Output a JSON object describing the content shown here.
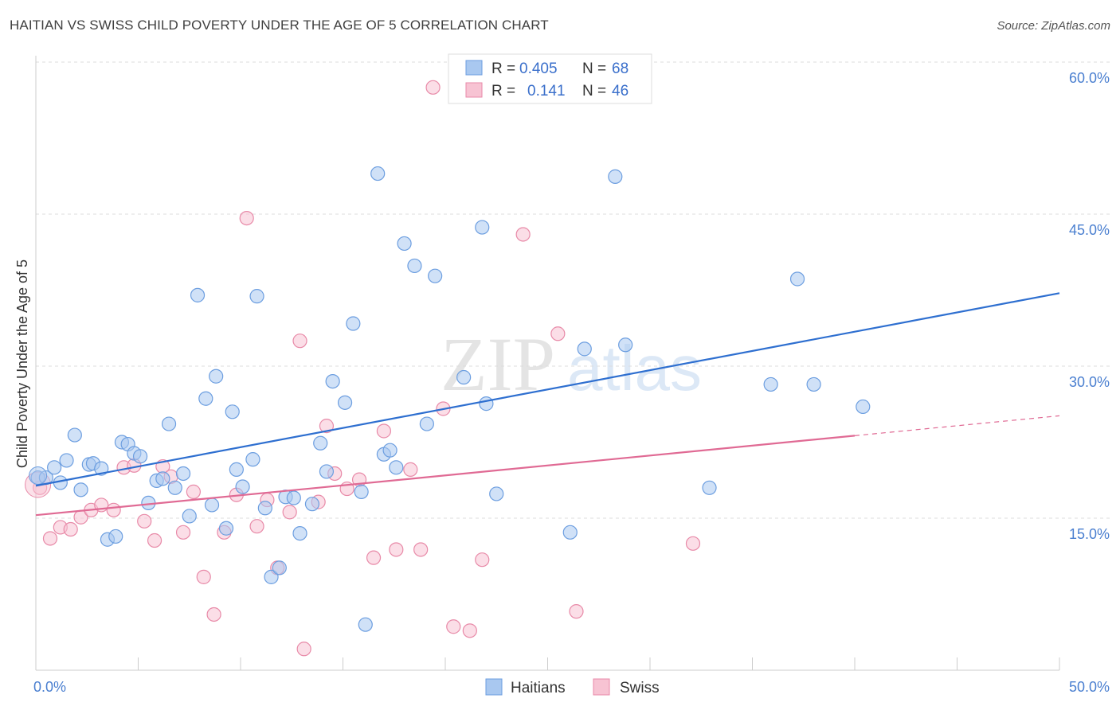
{
  "title": "HAITIAN VS SWISS CHILD POVERTY UNDER THE AGE OF 5 CORRELATION CHART",
  "source": "Source: ZipAtlas.com",
  "watermark": {
    "zip": "ZIP",
    "atlas": "atlas"
  },
  "colors": {
    "haitians_fill": "#a9c8f0",
    "haitians_stroke": "#6c9ee0",
    "haitians_line": "#2e6fd0",
    "swiss_fill": "#f7c3d3",
    "swiss_stroke": "#e88aa8",
    "swiss_line": "#e06a94",
    "tick_text": "#4a7fd0",
    "grid": "#dddddd"
  },
  "legend": {
    "rows": [
      {
        "r_label": "R =",
        "r_value": "0.405",
        "n_label": "N =",
        "n_value": "68"
      },
      {
        "r_label": "R =",
        "r_value": "0.141",
        "n_label": "N =",
        "n_value": "46"
      }
    ]
  },
  "bottom_legend": [
    "Haitians",
    "Swiss"
  ],
  "chart_data": {
    "type": "scatter",
    "title": "HAITIAN VS SWISS CHILD POVERTY UNDER THE AGE OF 5 CORRELATION CHART",
    "xlabel": "",
    "ylabel": "Child Poverty Under the Age of 5",
    "xlim": [
      0,
      50
    ],
    "ylim": [
      0,
      60
    ],
    "x_tick_labels": [
      "0.0%",
      "50.0%"
    ],
    "y_ticks": [
      15,
      30,
      45,
      60
    ],
    "y_tick_labels": [
      "15.0%",
      "30.0%",
      "45.0%",
      "60.0%"
    ],
    "grid": true,
    "series": [
      {
        "name": "Haitians",
        "R": 0.405,
        "N": 68,
        "trend": {
          "x": [
            0,
            50
          ],
          "y": [
            18.2,
            37.2
          ],
          "dashed_from": null
        },
        "points": [
          [
            0.1,
            19.0
          ],
          [
            0.5,
            19.0
          ],
          [
            0.9,
            20.0
          ],
          [
            1.2,
            18.5
          ],
          [
            1.5,
            20.7
          ],
          [
            1.9,
            23.2
          ],
          [
            2.2,
            17.8
          ],
          [
            2.6,
            20.3
          ],
          [
            2.8,
            20.4
          ],
          [
            3.2,
            19.9
          ],
          [
            3.5,
            12.9
          ],
          [
            3.9,
            13.2
          ],
          [
            4.2,
            22.5
          ],
          [
            4.5,
            22.3
          ],
          [
            4.8,
            21.4
          ],
          [
            5.1,
            21.1
          ],
          [
            5.5,
            16.5
          ],
          [
            5.9,
            18.7
          ],
          [
            6.2,
            18.9
          ],
          [
            6.5,
            24.3
          ],
          [
            6.8,
            18.0
          ],
          [
            7.2,
            19.4
          ],
          [
            7.5,
            15.2
          ],
          [
            7.9,
            37.0
          ],
          [
            8.3,
            26.8
          ],
          [
            8.6,
            16.3
          ],
          [
            8.8,
            29.0
          ],
          [
            9.3,
            14.0
          ],
          [
            9.6,
            25.5
          ],
          [
            9.8,
            19.8
          ],
          [
            10.1,
            18.1
          ],
          [
            10.6,
            20.8
          ],
          [
            10.8,
            36.9
          ],
          [
            11.2,
            16.0
          ],
          [
            11.5,
            9.2
          ],
          [
            11.9,
            10.1
          ],
          [
            12.2,
            17.1
          ],
          [
            12.6,
            17.0
          ],
          [
            12.9,
            13.5
          ],
          [
            13.5,
            16.4
          ],
          [
            13.9,
            22.4
          ],
          [
            14.2,
            19.6
          ],
          [
            14.5,
            28.5
          ],
          [
            15.1,
            26.4
          ],
          [
            15.5,
            34.2
          ],
          [
            15.9,
            17.6
          ],
          [
            16.1,
            4.5
          ],
          [
            16.7,
            49.0
          ],
          [
            17.0,
            21.3
          ],
          [
            17.3,
            21.7
          ],
          [
            17.6,
            20.0
          ],
          [
            18.0,
            42.1
          ],
          [
            18.5,
            39.9
          ],
          [
            19.1,
            24.3
          ],
          [
            19.5,
            38.9
          ],
          [
            20.9,
            28.9
          ],
          [
            21.8,
            43.7
          ],
          [
            22.0,
            26.3
          ],
          [
            22.5,
            17.4
          ],
          [
            26.1,
            13.6
          ],
          [
            26.8,
            31.7
          ],
          [
            28.3,
            48.7
          ],
          [
            28.8,
            32.1
          ],
          [
            32.9,
            18.0
          ],
          [
            35.9,
            28.2
          ],
          [
            37.2,
            38.6
          ],
          [
            38.0,
            28.2
          ],
          [
            40.4,
            26.0
          ]
        ]
      },
      {
        "name": "Swiss",
        "R": 0.141,
        "N": 46,
        "trend": {
          "x": [
            0,
            50
          ],
          "y": [
            15.3,
            25.1
          ],
          "dashed_from": 40
        },
        "points": [
          [
            0.2,
            18.0
          ],
          [
            0.7,
            13.0
          ],
          [
            1.2,
            14.1
          ],
          [
            1.7,
            13.9
          ],
          [
            2.2,
            15.1
          ],
          [
            2.7,
            15.8
          ],
          [
            3.2,
            16.3
          ],
          [
            3.8,
            15.8
          ],
          [
            4.3,
            20.0
          ],
          [
            4.8,
            20.2
          ],
          [
            5.3,
            14.7
          ],
          [
            5.8,
            12.8
          ],
          [
            6.2,
            20.1
          ],
          [
            6.6,
            19.1
          ],
          [
            7.2,
            13.6
          ],
          [
            7.7,
            17.6
          ],
          [
            8.2,
            9.2
          ],
          [
            8.7,
            5.5
          ],
          [
            9.2,
            13.6
          ],
          [
            9.8,
            17.3
          ],
          [
            10.3,
            44.6
          ],
          [
            10.8,
            14.2
          ],
          [
            11.3,
            16.8
          ],
          [
            11.8,
            10.1
          ],
          [
            12.4,
            15.6
          ],
          [
            12.9,
            32.5
          ],
          [
            13.1,
            2.1
          ],
          [
            13.8,
            16.6
          ],
          [
            14.2,
            24.1
          ],
          [
            14.6,
            19.4
          ],
          [
            15.2,
            17.9
          ],
          [
            15.8,
            18.8
          ],
          [
            16.5,
            11.1
          ],
          [
            17.0,
            23.6
          ],
          [
            17.6,
            11.9
          ],
          [
            18.3,
            19.8
          ],
          [
            18.8,
            11.9
          ],
          [
            19.4,
            57.5
          ],
          [
            19.9,
            25.8
          ],
          [
            20.4,
            4.3
          ],
          [
            21.2,
            3.9
          ],
          [
            21.8,
            10.9
          ],
          [
            23.8,
            43.0
          ],
          [
            25.5,
            33.2
          ],
          [
            26.4,
            5.8
          ],
          [
            32.1,
            12.5
          ]
        ]
      }
    ]
  }
}
